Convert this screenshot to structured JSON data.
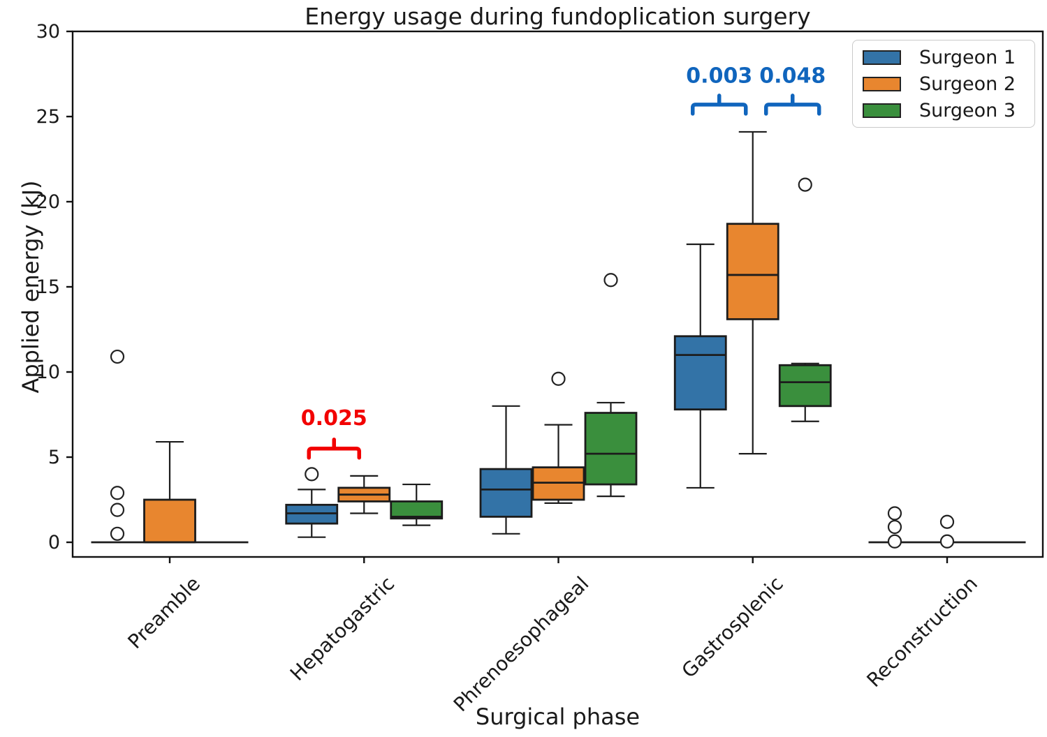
{
  "figure": {
    "title": "Energy usage during fundoplication surgery",
    "xlabel": "Surgical phase",
    "ylabel": "Applied energy (kJ)"
  },
  "chart_data": {
    "type": "boxplot",
    "title": "Energy usage during fundoplication surgery",
    "xlabel": "Surgical phase",
    "ylabel": "Applied energy (kJ)",
    "ylim": [
      -0.9,
      30
    ],
    "yticks": [
      0,
      5,
      10,
      15,
      20,
      25,
      30
    ],
    "grid": false,
    "legend_position": "upper right",
    "categories": [
      "Preamble",
      "Hepatogastric",
      "Phrenoesophageal",
      "Gastrosplenic",
      "Reconstruction"
    ],
    "series": [
      {
        "name": "Surgeon 1",
        "color": "#3373a7",
        "boxes": [
          {
            "whislo": 0,
            "q1": 0,
            "med": 0,
            "q3": 0,
            "whishi": 0,
            "fliers": [
              0.5,
              1.9,
              2.9,
              10.9
            ]
          },
          {
            "whislo": 0.3,
            "q1": 1.1,
            "med": 1.7,
            "q3": 2.2,
            "whishi": 3.1,
            "fliers": [
              4.0
            ]
          },
          {
            "whislo": 0.5,
            "q1": 1.5,
            "med": 3.1,
            "q3": 4.3,
            "whishi": 8.0,
            "fliers": []
          },
          {
            "whislo": 3.2,
            "q1": 7.8,
            "med": 11.0,
            "q3": 12.1,
            "whishi": 17.5,
            "fliers": []
          },
          {
            "whislo": 0,
            "q1": 0,
            "med": 0,
            "q3": 0,
            "whishi": 0,
            "fliers": [
              0.05,
              0.9,
              1.7
            ]
          }
        ]
      },
      {
        "name": "Surgeon 2",
        "color": "#e8862f",
        "boxes": [
          {
            "whislo": 0,
            "q1": 0,
            "med": 0,
            "q3": 2.5,
            "whishi": 5.9,
            "fliers": []
          },
          {
            "whislo": 1.7,
            "q1": 2.4,
            "med": 2.8,
            "q3": 3.2,
            "whishi": 3.9,
            "fliers": []
          },
          {
            "whislo": 2.3,
            "q1": 2.5,
            "med": 3.5,
            "q3": 4.4,
            "whishi": 6.9,
            "fliers": [
              9.6
            ]
          },
          {
            "whislo": 5.2,
            "q1": 13.1,
            "med": 15.7,
            "q3": 18.7,
            "whishi": 24.1,
            "fliers": []
          },
          {
            "whislo": 0,
            "q1": 0,
            "med": 0,
            "q3": 0,
            "whishi": 0,
            "fliers": [
              0.05,
              1.2
            ]
          }
        ]
      },
      {
        "name": "Surgeon 3",
        "color": "#3a8f3d",
        "boxes": [
          {
            "whislo": 0,
            "q1": 0,
            "med": 0,
            "q3": 0,
            "whishi": 0,
            "fliers": []
          },
          {
            "whislo": 1.0,
            "q1": 1.4,
            "med": 1.5,
            "q3": 2.4,
            "whishi": 3.4,
            "fliers": []
          },
          {
            "whislo": 2.7,
            "q1": 3.4,
            "med": 5.2,
            "q3": 7.6,
            "whishi": 8.2,
            "fliers": [
              15.4
            ]
          },
          {
            "whislo": 7.1,
            "q1": 8.0,
            "med": 9.4,
            "q3": 10.4,
            "whishi": 10.5,
            "fliers": [
              21.0
            ]
          },
          {
            "whislo": 0,
            "q1": 0,
            "med": 0,
            "q3": 0,
            "whishi": 0,
            "fliers": []
          }
        ]
      }
    ],
    "annotations": [
      {
        "label": "0.025",
        "color": "#f20000",
        "group": 1,
        "from": 0,
        "to": 1,
        "bracket_y": 5.5,
        "label_y": 7.3
      },
      {
        "label": "0.003",
        "color": "#1065bd",
        "group": 3,
        "from": 0,
        "to": 1,
        "bracket_y": 25.7,
        "label_y": 27.4
      },
      {
        "label": "0.048",
        "color": "#1065bd",
        "group": 3,
        "from": 1,
        "to": 2,
        "bracket_y": 25.7,
        "label_y": 27.4
      }
    ]
  }
}
